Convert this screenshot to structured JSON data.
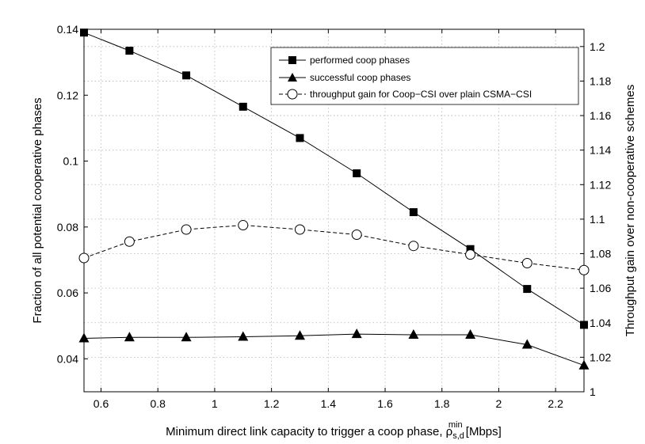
{
  "chart_data": {
    "type": "line",
    "x": [
      0.54,
      0.7,
      0.9,
      1.1,
      1.3,
      1.5,
      1.7,
      1.9,
      2.1,
      2.3
    ],
    "xlim": [
      0.54,
      2.3
    ],
    "xticks": [
      0.6,
      0.8,
      1,
      1.2,
      1.4,
      1.6,
      1.8,
      2,
      2.2
    ],
    "xtick_labels": [
      "0.6",
      "0.8",
      "1",
      "1.2",
      "1.4",
      "1.6",
      "1.8",
      "2",
      "2.2"
    ],
    "xlabel_main": "Minimum direct link capacity to trigger a coop phase, ρ",
    "xlabel_sub": "s,d",
    "xlabel_sup": "min",
    "xlabel_units": " [Mbps]",
    "ylabel": "Fraction of all potential cooperative phases",
    "ylim": [
      0.03,
      0.14
    ],
    "yticks": [
      0.04,
      0.06,
      0.08,
      0.1,
      0.12,
      0.14
    ],
    "ytick_labels": [
      "0.04",
      "0.06",
      "0.08",
      "0.1",
      "0.12",
      "0.14"
    ],
    "y2label": "Throughput gain over non-cooperative schemes",
    "y2lim": [
      1.0,
      1.21
    ],
    "y2ticks": [
      1.0,
      1.02,
      1.04,
      1.06,
      1.08,
      1.1,
      1.12,
      1.14,
      1.16,
      1.18,
      1.2
    ],
    "y2tick_labels": [
      "1",
      "1.02",
      "1.04",
      "1.06",
      "1.08",
      "1.1",
      "1.12",
      "1.14",
      "1.16",
      "1.18",
      "1.2"
    ],
    "grid": true,
    "legend_position": "top-right",
    "series": [
      {
        "name": "performed coop phases",
        "axis": "left",
        "marker": "square",
        "line": "solid",
        "values": [
          0.139,
          0.1335,
          0.126,
          0.1165,
          0.107,
          0.0963,
          0.0845,
          0.0733,
          0.0612,
          0.0503
        ]
      },
      {
        "name": "successful coop phases",
        "axis": "left",
        "marker": "triangle",
        "line": "solid",
        "values": [
          0.0462,
          0.0465,
          0.0465,
          0.0467,
          0.047,
          0.0475,
          0.0473,
          0.0473,
          0.0443,
          0.038
        ]
      },
      {
        "name": "throughput gain for Coop−CSI over plain CSMA−CSI",
        "axis": "right",
        "marker": "circle",
        "line": "dashed",
        "values": [
          1.0775,
          1.087,
          1.094,
          1.0965,
          1.094,
          1.091,
          1.0845,
          1.0795,
          1.0745,
          1.0705
        ]
      }
    ]
  }
}
